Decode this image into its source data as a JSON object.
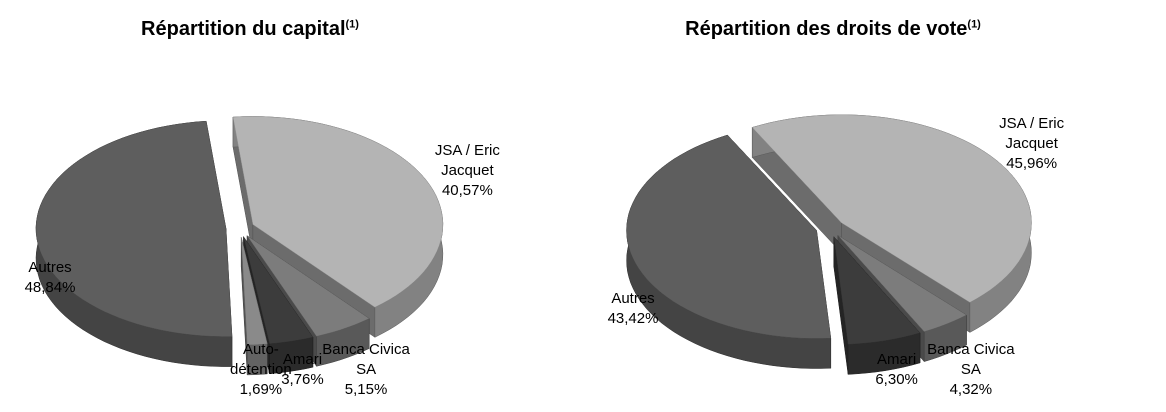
{
  "chart_data": [
    {
      "type": "pie3d",
      "title": "Répartition du capital",
      "title_note": "(1)",
      "categories": [
        "JSA / Eric Jacquet",
        "Banca Civica SA",
        "Amari",
        "Auto-détention",
        "Autres"
      ],
      "values": [
        40.57,
        5.15,
        3.76,
        1.69,
        48.84
      ],
      "value_labels": [
        "40,57%",
        "5,15%",
        "3,76%",
        "1,69%",
        "48,84%"
      ],
      "colors": [
        "#b4b4b4",
        "#7c7c7c",
        "#3c3c3c",
        "#8a8a8a",
        "#5e5e5e"
      ]
    },
    {
      "type": "pie3d",
      "title": "Répartition des droits de vote",
      "title_note": "(1)",
      "categories": [
        "JSA / Eric Jacquet",
        "Banca Civica SA",
        "Amari",
        "Autres"
      ],
      "values": [
        45.96,
        4.32,
        6.3,
        43.42
      ],
      "value_labels": [
        "45,96%",
        "4,32%",
        "6,30%",
        "43,42%"
      ],
      "colors": [
        "#b4b4b4",
        "#7c7c7c",
        "#3c3c3c",
        "#5e5e5e"
      ]
    }
  ]
}
